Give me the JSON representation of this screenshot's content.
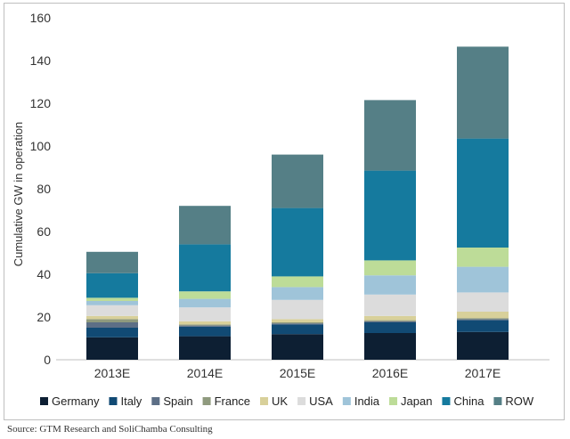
{
  "source_note": "Source:  GTM Research and SoliChamba Consulting",
  "chart_data": {
    "type": "bar",
    "stacked": true,
    "categories": [
      "2013E",
      "2014E",
      "2015E",
      "2016E",
      "2017E"
    ],
    "ylabel": "Cumulative GW in operation",
    "xlabel": "",
    "ylim": [
      0,
      160
    ],
    "yticks": [
      0,
      20,
      40,
      60,
      80,
      100,
      120,
      140,
      160
    ],
    "grid": false,
    "legend_position": "bottom",
    "series": [
      {
        "name": "Germany",
        "color": "#0d1f33",
        "values": [
          10.5,
          11,
          12,
          12.5,
          13
        ]
      },
      {
        "name": "Italy",
        "color": "#114a74",
        "values": [
          4.5,
          4.5,
          4.5,
          5,
          5.5
        ]
      },
      {
        "name": "Spain",
        "color": "#5d6f86",
        "values": [
          2.5,
          0.5,
          0.5,
          0.5,
          0.5
        ]
      },
      {
        "name": "France",
        "color": "#8f9a7e",
        "values": [
          1.5,
          0.5,
          0.5,
          0.5,
          0.5
        ]
      },
      {
        "name": "UK",
        "color": "#d8d09a",
        "values": [
          1.5,
          1.5,
          1.5,
          2,
          3
        ]
      },
      {
        "name": "USA",
        "color": "#dcdcdc",
        "values": [
          5,
          6.5,
          9,
          10,
          9
        ]
      },
      {
        "name": "India",
        "color": "#9fc4d9",
        "values": [
          2,
          4,
          6,
          9,
          12
        ]
      },
      {
        "name": "Japan",
        "color": "#bddc98",
        "values": [
          1.5,
          3.5,
          5,
          7,
          9
        ]
      },
      {
        "name": "China",
        "color": "#157a9e",
        "values": [
          11.5,
          22,
          32,
          42,
          51
        ]
      },
      {
        "name": "ROW",
        "color": "#557f86",
        "values": [
          10,
          18,
          25,
          33,
          43
        ]
      }
    ]
  }
}
